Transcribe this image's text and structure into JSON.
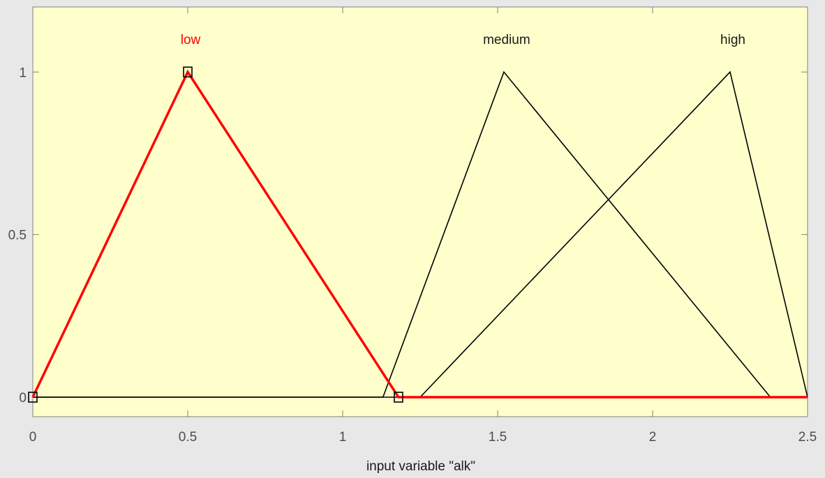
{
  "chart_data": {
    "type": "line",
    "xlabel": "input variable \"alk\"",
    "ylabel": "",
    "xlim": [
      0,
      2.5
    ],
    "ylim": [
      -0.06,
      1.2
    ],
    "xticks": [
      {
        "value": 0,
        "label": "0"
      },
      {
        "value": 0.5,
        "label": "0.5"
      },
      {
        "value": 1,
        "label": "1"
      },
      {
        "value": 1.5,
        "label": "1.5"
      },
      {
        "value": 2,
        "label": "2"
      },
      {
        "value": 2.5,
        "label": "2.5"
      }
    ],
    "yticks": [
      {
        "value": 0,
        "label": "0"
      },
      {
        "value": 0.5,
        "label": "0.5"
      },
      {
        "value": 1,
        "label": "1"
      }
    ],
    "grid": false,
    "series": [
      {
        "name": "low",
        "highlighted": true,
        "color": "#ff0000",
        "points": [
          [
            0,
            0
          ],
          [
            0.5,
            1
          ],
          [
            1.18,
            0
          ],
          [
            2.5,
            0
          ]
        ],
        "markers": [
          [
            0,
            0
          ],
          [
            0.5,
            1
          ],
          [
            1.18,
            0
          ]
        ]
      },
      {
        "name": "medium",
        "highlighted": false,
        "color": "#000000",
        "points": [
          [
            0,
            0
          ],
          [
            1.13,
            0
          ],
          [
            1.52,
            1
          ],
          [
            2.38,
            0
          ],
          [
            2.5,
            0
          ]
        ]
      },
      {
        "name": "high",
        "highlighted": false,
        "color": "#000000",
        "points": [
          [
            0,
            0
          ],
          [
            1.25,
            0
          ],
          [
            2.25,
            1
          ],
          [
            2.5,
            0
          ]
        ]
      }
    ],
    "colors": {
      "plot_background": "#ffffcc",
      "figure_background": "#e8e8e8",
      "axis": "#7f7f7f",
      "tick_label": "#4d4d4d"
    }
  }
}
